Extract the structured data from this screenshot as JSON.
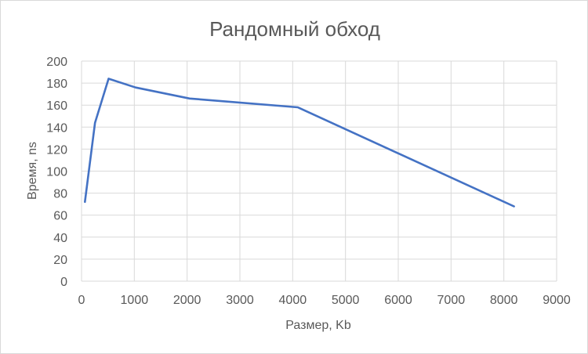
{
  "chart_data": {
    "type": "scatter",
    "mode": "lines",
    "title": "Рандомный обход",
    "xlabel": "Размер, Kb",
    "ylabel": "Время, ns",
    "xlim": [
      0,
      9000
    ],
    "ylim": [
      0,
      200
    ],
    "x_ticks": [
      "0",
      "1000",
      "2000",
      "3000",
      "4000",
      "5000",
      "6000",
      "7000",
      "8000",
      "9000"
    ],
    "y_ticks": [
      "0",
      "20",
      "40",
      "60",
      "80",
      "100",
      "120",
      "140",
      "160",
      "180",
      "200"
    ],
    "grid": true,
    "legend": "none",
    "series": [
      {
        "color": "#4472c4",
        "x": [
          64,
          256,
          512,
          1024,
          2048,
          4096,
          8192
        ],
        "y": [
          72,
          144,
          184,
          176,
          166,
          158,
          68
        ]
      }
    ]
  }
}
